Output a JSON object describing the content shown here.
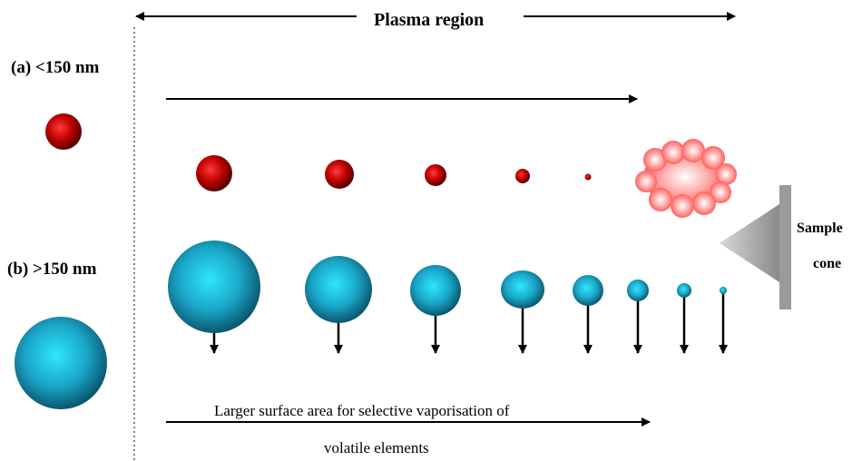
{
  "title": "Plasma region",
  "labels": {
    "case_a": "(a) <150 nm",
    "case_b": "(b) >150 nm"
  },
  "sample_cone": {
    "line1": "Sample",
    "line2": "cone"
  },
  "caption": {
    "line1": "Larger surface area for selective vaporisation of",
    "line2": "volatile elements"
  },
  "colors": {
    "small_particle": "#cc0000",
    "large_particle": "#1aa7c9",
    "cloud": "#ff8a8a",
    "cone": "#a8a8a8"
  },
  "icons": {
    "cloud": "vapor-cloud-icon",
    "cone": "sample-cone-icon"
  }
}
